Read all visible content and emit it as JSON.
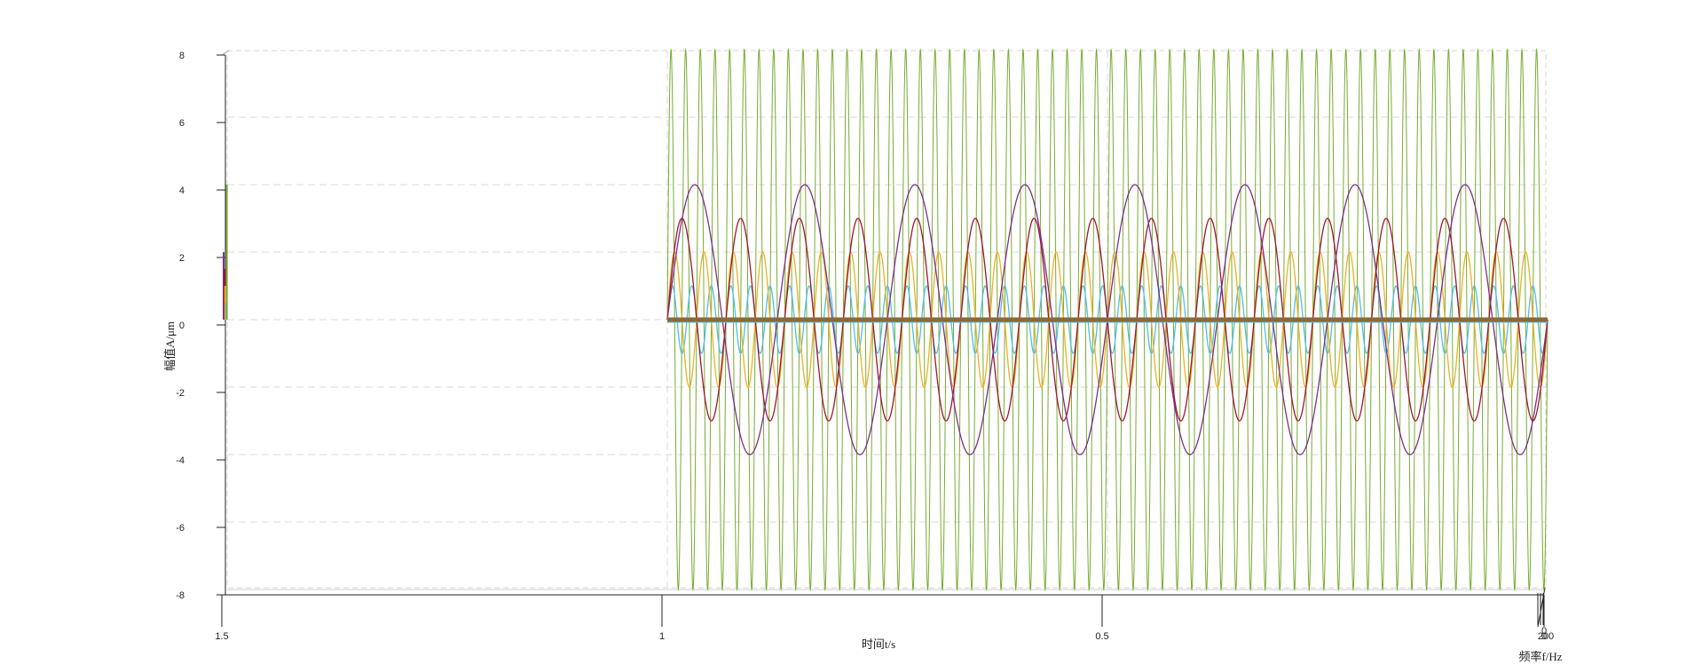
{
  "chart_data": {
    "type": "line",
    "view": "3d",
    "axes": {
      "z": {
        "label": "幅值A/μm",
        "ticks": [
          "-8",
          "-6",
          "-4",
          "-2",
          "0",
          "2",
          "4",
          "6",
          "8"
        ],
        "range": [
          -8,
          8
        ]
      },
      "x": {
        "label": "时间t/s",
        "ticks": [
          "1.5",
          "1",
          "0.5",
          "0"
        ],
        "range": [
          0,
          1.5
        ]
      },
      "y": {
        "label": "频率f/Hz",
        "ticks": [
          "0",
          "200"
        ],
        "range": [
          0,
          200
        ]
      }
    },
    "grid": true,
    "series": [
      {
        "amplitude": 4,
        "frequency_hz": 8,
        "color": "#7e2f8e"
      },
      {
        "amplitude": 3,
        "frequency_hz": 15,
        "color": "#a2142f"
      },
      {
        "amplitude": 2,
        "frequency_hz": 30,
        "color": "#edb120"
      },
      {
        "amplitude": 1,
        "frequency_hz": 45,
        "color": "#4dbeee"
      },
      {
        "amplitude": 8,
        "frequency_hz": 60,
        "color": "#77ac30"
      }
    ],
    "spectrum": [
      {
        "frequency_hz": 8,
        "amplitude": 4
      },
      {
        "frequency_hz": 15,
        "amplitude": 3
      },
      {
        "frequency_hz": 30,
        "amplitude": 2
      },
      {
        "frequency_hz": 45,
        "amplitude": 1
      },
      {
        "frequency_hz": 60,
        "amplitude": 8
      }
    ],
    "baseline_color": "#8a6a3a"
  }
}
